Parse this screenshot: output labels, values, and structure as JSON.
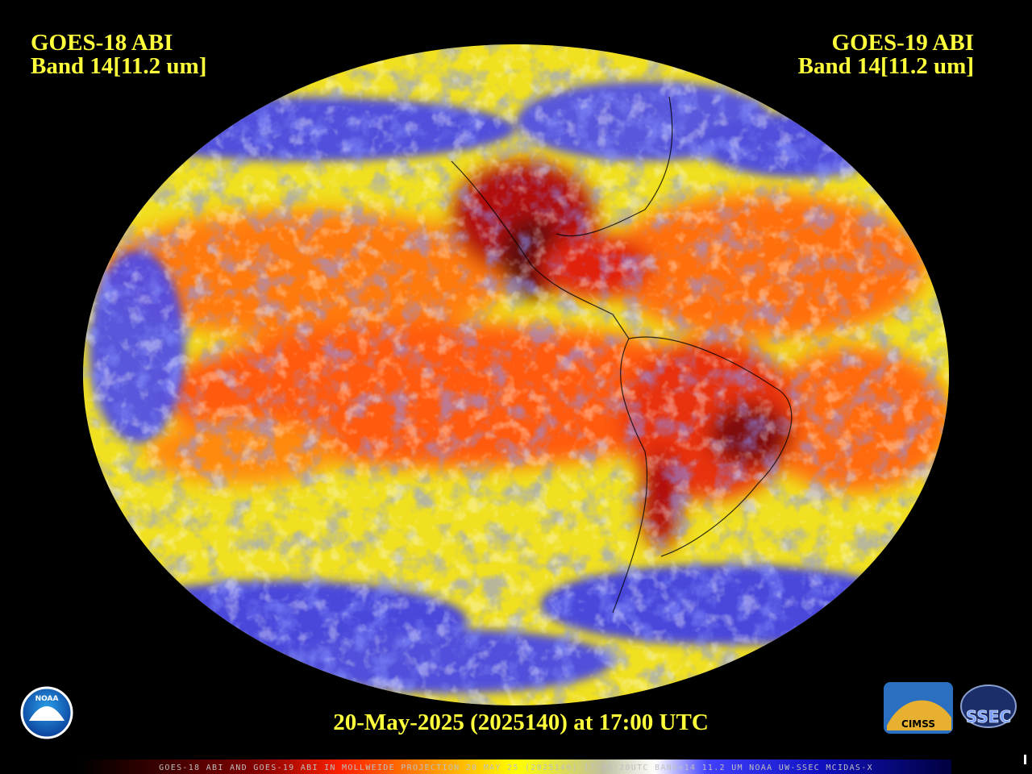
{
  "header": {
    "left": {
      "satellite": "GOES-18 ABI",
      "band": "Band 14[11.2 um]"
    },
    "right": {
      "satellite": "GOES-19 ABI",
      "band": "Band 14[11.2 um]"
    }
  },
  "timestamp": "20-May-2025 (2025140) at 17:00 UTC",
  "footer": "GOES-18 ABI AND GOES-19 ABI IN MOLLWEIDE PROJECTION 20 MAY 25 (2025140) 17:00:20UTC BAND=14 11.2 UM NOAA UW-SSEC MCIDAS-X",
  "logos": {
    "noaa": "NOAA",
    "cimss": "CIMSS",
    "ssec": "SSEC"
  }
}
